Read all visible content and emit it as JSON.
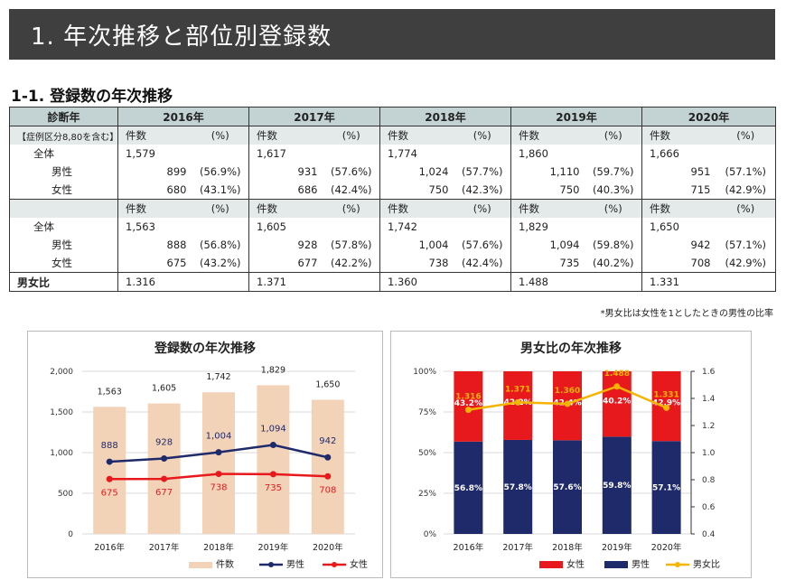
{
  "header": {
    "title": "1.  年次推移と部位別登録数"
  },
  "section": {
    "title": "1-1.  登録数の年次推移"
  },
  "table": {
    "diag_label": "診断年",
    "criteria_label": "【症例区分8,80を含む】",
    "years": [
      "2016年",
      "2017年",
      "2018年",
      "2019年",
      "2020年"
    ],
    "col_count": "件数",
    "col_pct": "(%)",
    "group1": {
      "total_label": "全体",
      "male_label": "男性",
      "female_label": "女性",
      "total": [
        "1,579",
        "1,617",
        "1,774",
        "1,860",
        "1,666"
      ],
      "male": [
        "899",
        "931",
        "1,024",
        "1,110",
        "951"
      ],
      "male_pct": [
        "(56.9%)",
        "(57.6%)",
        "(57.7%)",
        "(59.7%)",
        "(57.1%)"
      ],
      "female": [
        "680",
        "686",
        "750",
        "750",
        "715"
      ],
      "female_pct": [
        "(43.1%)",
        "(42.4%)",
        "(42.3%)",
        "(40.3%)",
        "(42.9%)"
      ]
    },
    "group2": {
      "total_label": "全体",
      "male_label": "男性",
      "female_label": "女性",
      "total": [
        "1,563",
        "1,605",
        "1,742",
        "1,829",
        "1,650"
      ],
      "male": [
        "888",
        "928",
        "1,004",
        "1,094",
        "942"
      ],
      "male_pct": [
        "(56.8%)",
        "(57.8%)",
        "(57.6%)",
        "(59.8%)",
        "(57.1%)"
      ],
      "female": [
        "675",
        "677",
        "738",
        "735",
        "708"
      ],
      "female_pct": [
        "(43.2%)",
        "(42.2%)",
        "(42.4%)",
        "(40.2%)",
        "(42.9%)"
      ]
    },
    "ratio_label": "男女比",
    "ratio": [
      "1.316",
      "1.371",
      "1.360",
      "1.488",
      "1.331"
    ]
  },
  "note": "*男女比は女性を1としたときの男性の比率",
  "chart_data": [
    {
      "type": "bar",
      "title": "登録数の年次推移",
      "categories": [
        "2016年",
        "2017年",
        "2018年",
        "2019年",
        "2020年"
      ],
      "ylim": [
        0,
        2000
      ],
      "yticks": [
        "0",
        "500",
        "1,000",
        "1,500",
        "2,000"
      ],
      "series": [
        {
          "name": "件数",
          "type": "bar",
          "values": [
            1563,
            1605,
            1742,
            1829,
            1650
          ],
          "labels": [
            "1,563",
            "1,605",
            "1,742",
            "1,829",
            "1,650"
          ],
          "color": "#f3d3b8"
        },
        {
          "name": "男性",
          "type": "line",
          "values": [
            888,
            928,
            1004,
            1094,
            942
          ],
          "labels": [
            "888",
            "928",
            "1,004",
            "1,094",
            "942"
          ],
          "color": "#1f2a6b"
        },
        {
          "name": "女性",
          "type": "line",
          "values": [
            675,
            677,
            738,
            735,
            708
          ],
          "labels": [
            "675",
            "677",
            "738",
            "735",
            "708"
          ],
          "color": "#e8191c"
        }
      ]
    },
    {
      "type": "bar",
      "title": "男女比の年次推移",
      "categories": [
        "2016年",
        "2017年",
        "2018年",
        "2019年",
        "2020年"
      ],
      "ylim": [
        0,
        100
      ],
      "yticks": [
        "0%",
        "25%",
        "50%",
        "75%",
        "100%"
      ],
      "y2lim": [
        0.4,
        1.6
      ],
      "y2ticks": [
        "0.4",
        "0.6",
        "0.8",
        "1.0",
        "1.2",
        "1.4",
        "1.6"
      ],
      "series": [
        {
          "name": "女性",
          "type": "stacked-bar",
          "values": [
            43.2,
            42.2,
            42.4,
            40.2,
            42.9
          ],
          "labels": [
            "43.2%",
            "42.2%",
            "42.4%",
            "40.2%",
            "42.9%"
          ],
          "color": "#e8191c"
        },
        {
          "name": "男性",
          "type": "stacked-bar",
          "values": [
            56.8,
            57.8,
            57.6,
            59.8,
            57.1
          ],
          "labels": [
            "56.8%",
            "57.8%",
            "57.6%",
            "59.8%",
            "57.1%"
          ],
          "color": "#1f2a6b"
        },
        {
          "name": "男女比",
          "type": "line",
          "axis": "right",
          "values": [
            1.316,
            1.371,
            1.36,
            1.488,
            1.331
          ],
          "labels": [
            "1.316",
            "1.371",
            "1.360",
            "1.488",
            "1.331"
          ],
          "color": "#f5b400"
        }
      ]
    }
  ]
}
